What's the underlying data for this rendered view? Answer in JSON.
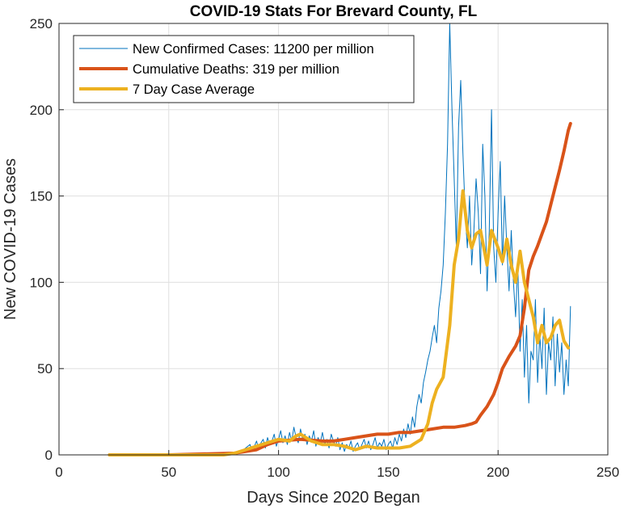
{
  "chart_data": {
    "type": "line",
    "title": "COVID-19 Stats For Brevard County, FL",
    "xlabel": "Days Since 2020 Began",
    "ylabel": "New COVID-19 Cases",
    "xlim": [
      0,
      250
    ],
    "ylim": [
      0,
      250
    ],
    "xticks": [
      "0",
      "50",
      "100",
      "150",
      "200",
      "250"
    ],
    "yticks": [
      "0",
      "50",
      "100",
      "150",
      "200",
      "250"
    ],
    "grid": true,
    "legend_position": "top-left",
    "series": [
      {
        "name": "New Confirmed Cases: 11200 per million",
        "color": "#0072BD",
        "x": [
          23,
          30,
          40,
          50,
          60,
          70,
          75,
          80,
          83,
          85,
          87,
          88,
          89,
          90,
          91,
          92,
          93,
          94,
          95,
          96,
          97,
          98,
          99,
          100,
          101,
          102,
          103,
          104,
          105,
          106,
          107,
          108,
          109,
          110,
          111,
          112,
          113,
          114,
          115,
          116,
          117,
          118,
          119,
          120,
          121,
          122,
          123,
          124,
          125,
          126,
          127,
          128,
          129,
          130,
          131,
          132,
          133,
          134,
          135,
          136,
          137,
          138,
          139,
          140,
          141,
          142,
          143,
          144,
          145,
          146,
          147,
          148,
          149,
          150,
          151,
          152,
          153,
          154,
          155,
          156,
          157,
          158,
          159,
          160,
          161,
          162,
          163,
          164,
          165,
          166,
          167,
          168,
          169,
          170,
          171,
          172,
          173,
          174,
          175,
          176,
          177,
          178,
          179,
          180,
          181,
          182,
          183,
          184,
          185,
          186,
          187,
          188,
          189,
          190,
          191,
          192,
          193,
          194,
          195,
          196,
          197,
          198,
          199,
          200,
          201,
          202,
          203,
          204,
          205,
          206,
          207,
          208,
          209,
          210,
          211,
          212,
          213,
          214,
          215,
          216,
          217,
          218,
          219,
          220,
          221,
          222,
          223,
          224,
          225,
          226,
          227,
          228,
          229,
          230,
          231,
          232,
          233
        ],
        "values": [
          0,
          0,
          0,
          0,
          0,
          0,
          0,
          1,
          2,
          4,
          6,
          2,
          5,
          8,
          3,
          7,
          9,
          4,
          10,
          6,
          8,
          12,
          5,
          9,
          14,
          7,
          11,
          6,
          13,
          8,
          16,
          10,
          7,
          15,
          9,
          12,
          6,
          11,
          8,
          14,
          5,
          10,
          7,
          13,
          6,
          9,
          4,
          12,
          8,
          5,
          10,
          3,
          7,
          2,
          6,
          4,
          8,
          2,
          5,
          7,
          3,
          6,
          9,
          4,
          8,
          3,
          6,
          10,
          4,
          7,
          5,
          9,
          3,
          6,
          8,
          4,
          10,
          6,
          12,
          8,
          15,
          10,
          18,
          12,
          22,
          16,
          28,
          35,
          30,
          42,
          48,
          55,
          60,
          68,
          75,
          65,
          85,
          95,
          110,
          140,
          180,
          251,
          200,
          160,
          120,
          190,
          217,
          175,
          140,
          120,
          150,
          110,
          130,
          160,
          140,
          105,
          180,
          150,
          95,
          130,
          200,
          120,
          100,
          140,
          170,
          110,
          150,
          120,
          95,
          130,
          100,
          80,
          110,
          60,
          90,
          45,
          75,
          30,
          60,
          55,
          90,
          42,
          70,
          50,
          85,
          35,
          65,
          55,
          80,
          40,
          70,
          48,
          65,
          35,
          55,
          40,
          86
        ],
        "line_width": 1
      },
      {
        "name": "Cumulative Deaths: 319 per million",
        "color": "#D95319",
        "x": [
          23,
          50,
          80,
          90,
          95,
          100,
          110,
          120,
          125,
          130,
          135,
          140,
          145,
          150,
          155,
          160,
          165,
          170,
          175,
          180,
          185,
          188,
          190,
          192,
          195,
          198,
          200,
          202,
          205,
          208,
          210,
          212,
          214,
          216,
          218,
          220,
          222,
          224,
          226,
          228,
          230,
          232,
          233
        ],
        "values": [
          0,
          0,
          1,
          3,
          6,
          8,
          9,
          8,
          8,
          9,
          10,
          11,
          12,
          12,
          13,
          13,
          14,
          15,
          16,
          16,
          17,
          18,
          19,
          23,
          28,
          35,
          42,
          50,
          57,
          63,
          69,
          85,
          107,
          115,
          121,
          128,
          135,
          145,
          155,
          165,
          176,
          188,
          192
        ],
        "line_width": 4
      },
      {
        "name": "7 Day Case Average",
        "color": "#EDB120",
        "x": [
          23,
          40,
          60,
          75,
          80,
          85,
          90,
          95,
          100,
          105,
          108,
          110,
          115,
          120,
          125,
          130,
          135,
          140,
          145,
          150,
          155,
          160,
          165,
          168,
          170,
          172,
          175,
          178,
          180,
          182,
          184,
          186,
          188,
          190,
          192,
          195,
          197,
          200,
          202,
          204,
          206,
          208,
          210,
          212,
          214,
          216,
          218,
          220,
          222,
          224,
          226,
          228,
          230,
          232
        ],
        "values": [
          0,
          0,
          0,
          0,
          1,
          3,
          5,
          7,
          9,
          8,
          11,
          12,
          8,
          6,
          6,
          5,
          3,
          5,
          4,
          4,
          4,
          5,
          9,
          18,
          30,
          38,
          45,
          75,
          110,
          125,
          153,
          130,
          120,
          128,
          130,
          110,
          130,
          120,
          112,
          125,
          110,
          100,
          118,
          100,
          90,
          80,
          65,
          75,
          65,
          68,
          75,
          78,
          66,
          62
        ],
        "line_width": 4
      }
    ]
  }
}
